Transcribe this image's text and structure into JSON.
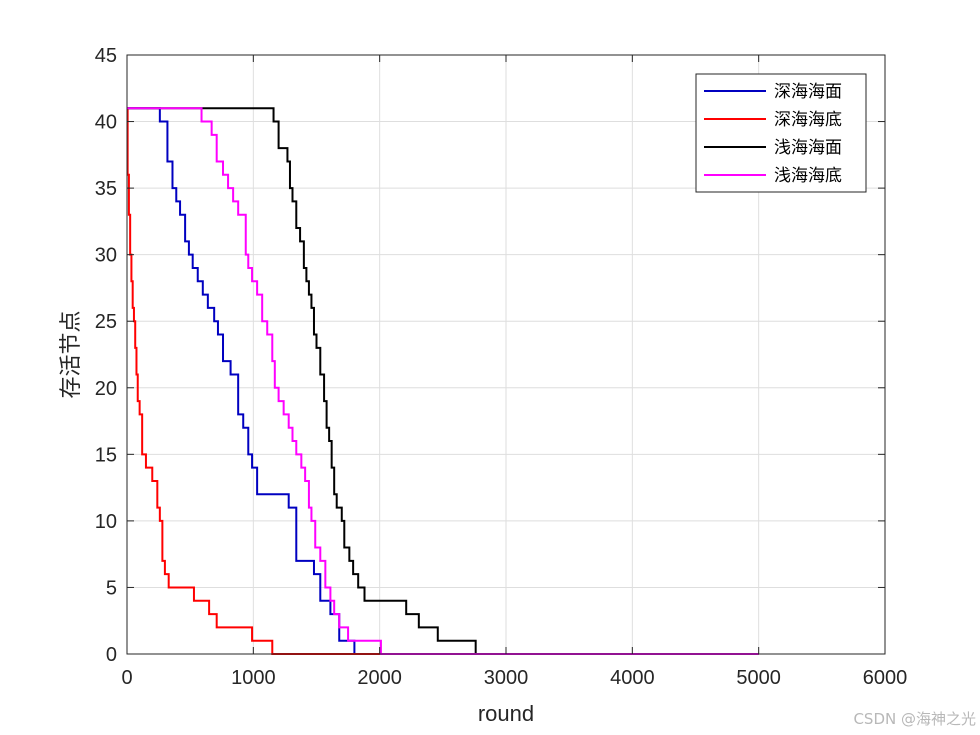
{
  "watermark": "CSDN @海神之光",
  "colors": {
    "axis": "#262626",
    "grid": "#dedede",
    "background": "#ffffff"
  },
  "chart_data": {
    "type": "line",
    "title": "",
    "xlabel": "round",
    "ylabel": "存活节点",
    "xlim": [
      0,
      6000
    ],
    "ylim": [
      0,
      45
    ],
    "xticks": [
      0,
      1000,
      2000,
      3000,
      4000,
      5000,
      6000
    ],
    "yticks": [
      0,
      5,
      10,
      15,
      20,
      25,
      30,
      35,
      40,
      45
    ],
    "grid": true,
    "legend_position": "top-right",
    "step": true,
    "series": [
      {
        "name": "深海海面",
        "color": "#0000c0",
        "x": [
          0,
          260,
          320,
          360,
          390,
          420,
          460,
          490,
          520,
          560,
          600,
          640,
          690,
          720,
          760,
          820,
          880,
          920,
          960,
          990,
          1030,
          1060,
          1090,
          1120,
          1280,
          1340,
          1440,
          1480,
          1530,
          1570,
          1610,
          1640,
          1680,
          1720,
          1760,
          1800,
          5000
        ],
        "y": [
          41,
          40,
          37,
          35,
          34,
          33,
          31,
          30,
          29,
          28,
          27,
          26,
          25,
          24,
          22,
          21,
          18,
          17,
          15,
          14,
          12,
          12,
          12,
          12,
          11,
          7,
          7,
          6,
          4,
          4,
          3,
          3,
          1,
          1,
          1,
          0,
          0
        ]
      },
      {
        "name": "深海海底",
        "color": "#ff0000",
        "x": [
          0,
          5,
          15,
          25,
          35,
          45,
          55,
          65,
          75,
          85,
          100,
          120,
          150,
          200,
          240,
          260,
          280,
          300,
          330,
          380,
          530,
          650,
          710,
          990,
          1150,
          5000
        ],
        "y": [
          41,
          36,
          33,
          30,
          28,
          26,
          25,
          23,
          21,
          19,
          18,
          15,
          14,
          13,
          11,
          10,
          7,
          6,
          5,
          5,
          4,
          3,
          2,
          1,
          0,
          0
        ]
      },
      {
        "name": "浅海海面",
        "color": "#000000",
        "x": [
          0,
          1160,
          1200,
          1270,
          1290,
          1310,
          1340,
          1370,
          1400,
          1420,
          1440,
          1460,
          1480,
          1500,
          1530,
          1560,
          1580,
          1600,
          1620,
          1640,
          1660,
          1700,
          1720,
          1760,
          1790,
          1830,
          1880,
          2080,
          2210,
          2310,
          2460,
          2760,
          5000
        ],
        "y": [
          41,
          40,
          38,
          37,
          35,
          34,
          32,
          31,
          29,
          28,
          27,
          26,
          24,
          23,
          21,
          19,
          17,
          16,
          14,
          12,
          11,
          10,
          8,
          7,
          6,
          5,
          4,
          4,
          3,
          2,
          1,
          0,
          0
        ]
      },
      {
        "name": "浅海海底",
        "color": "#ff00ff",
        "x": [
          0,
          590,
          670,
          710,
          760,
          800,
          840,
          880,
          940,
          960,
          990,
          1030,
          1070,
          1110,
          1150,
          1170,
          1200,
          1240,
          1280,
          1310,
          1340,
          1380,
          1410,
          1440,
          1460,
          1490,
          1530,
          1570,
          1610,
          1640,
          1680,
          1750,
          1790,
          2010,
          5000
        ],
        "y": [
          41,
          40,
          39,
          37,
          36,
          35,
          34,
          33,
          30,
          29,
          28,
          27,
          25,
          24,
          22,
          20,
          19,
          18,
          17,
          16,
          15,
          14,
          13,
          11,
          10,
          8,
          7,
          5,
          4,
          3,
          2,
          1,
          1,
          0,
          0
        ]
      }
    ]
  }
}
